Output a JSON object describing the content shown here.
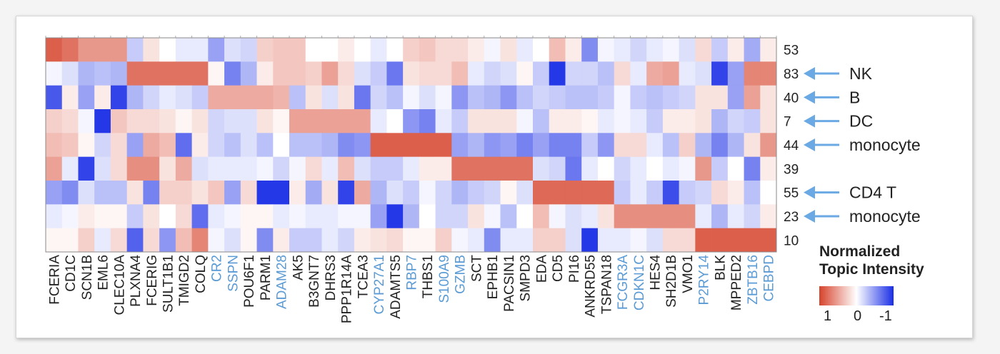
{
  "chart_data": {
    "type": "heatmap",
    "columns": [
      {
        "label": "FCERIA",
        "highlight": false
      },
      {
        "label": "CD1C",
        "highlight": false
      },
      {
        "label": "SCN1B",
        "highlight": false
      },
      {
        "label": "EML6",
        "highlight": false
      },
      {
        "label": "CLEC10A",
        "highlight": false
      },
      {
        "label": "PLXNA4",
        "highlight": false
      },
      {
        "label": "FCERIG",
        "highlight": false
      },
      {
        "label": "SULT1B1",
        "highlight": false
      },
      {
        "label": "TMIGD2",
        "highlight": false
      },
      {
        "label": "COLQ",
        "highlight": false
      },
      {
        "label": "CR2",
        "highlight": true
      },
      {
        "label": "SSPN",
        "highlight": true
      },
      {
        "label": "POU6F1",
        "highlight": false
      },
      {
        "label": "PARM1",
        "highlight": false
      },
      {
        "label": "ADAM28",
        "highlight": true
      },
      {
        "label": "AK5",
        "highlight": false
      },
      {
        "label": "B3GNT7",
        "highlight": false
      },
      {
        "label": "DHRS3",
        "highlight": false
      },
      {
        "label": "PPP1R14A",
        "highlight": false
      },
      {
        "label": "TCEA3",
        "highlight": false
      },
      {
        "label": "CYP27A1",
        "highlight": true
      },
      {
        "label": "ADAMTS5",
        "highlight": false
      },
      {
        "label": "RBP7",
        "highlight": true
      },
      {
        "label": "THBS1",
        "highlight": false
      },
      {
        "label": "S100A9",
        "highlight": true
      },
      {
        "label": "GZMB",
        "highlight": true
      },
      {
        "label": "SCT",
        "highlight": false
      },
      {
        "label": "EPHB1",
        "highlight": false
      },
      {
        "label": "PACSIN1",
        "highlight": false
      },
      {
        "label": "SMPD3",
        "highlight": false
      },
      {
        "label": "EDA",
        "highlight": false
      },
      {
        "label": "CD5",
        "highlight": false
      },
      {
        "label": "PI16",
        "highlight": false
      },
      {
        "label": "ANKRD55",
        "highlight": false
      },
      {
        "label": "TSPAN18",
        "highlight": false
      },
      {
        "label": "FCGR3A",
        "highlight": true
      },
      {
        "label": "CDKN1C",
        "highlight": true
      },
      {
        "label": "HES4",
        "highlight": false
      },
      {
        "label": "SH2D1B",
        "highlight": false
      },
      {
        "label": "VMO1",
        "highlight": false
      },
      {
        "label": "P2RY14",
        "highlight": true
      },
      {
        "label": "BLK",
        "highlight": false
      },
      {
        "label": "MPPED2",
        "highlight": false
      },
      {
        "label": "ZBTB16",
        "highlight": true
      },
      {
        "label": "CEBPD",
        "highlight": true
      }
    ],
    "rows": [
      "53",
      "83",
      "40",
      "7",
      "44",
      "39",
      "55",
      "23",
      "10"
    ],
    "values": [
      [
        0.85,
        0.75,
        0.55,
        0.55,
        0.55,
        -0.25,
        0.15,
        0.0,
        -0.1,
        -0.1,
        -0.45,
        -0.15,
        -0.2,
        0.25,
        0.3,
        0.3,
        0.0,
        0.0,
        0.1,
        0.0,
        -0.1,
        0.0,
        0.25,
        0.3,
        0.2,
        0.2,
        0.1,
        -0.05,
        0.15,
        -0.1,
        0.0,
        0.35,
        0.1,
        -0.55,
        -0.05,
        -0.1,
        -0.2,
        -0.1,
        -0.05,
        -0.15,
        0.2,
        -0.25,
        0.1,
        -0.4,
        0.1
      ],
      [
        -0.05,
        -0.15,
        -0.35,
        -0.3,
        -0.35,
        0.75,
        0.75,
        0.75,
        0.75,
        0.75,
        0.05,
        -0.6,
        -0.35,
        0.1,
        0.3,
        0.3,
        0.25,
        0.5,
        0.2,
        -0.15,
        -0.25,
        -0.65,
        0.15,
        0.2,
        0.2,
        0.35,
        -0.1,
        -0.2,
        -0.15,
        0.05,
        -0.25,
        -0.95,
        -0.2,
        -0.2,
        -0.3,
        0.2,
        -0.1,
        0.45,
        0.5,
        -0.1,
        -0.15,
        -0.9,
        -0.45,
        0.65,
        0.65
      ],
      [
        -0.8,
        0.1,
        -0.45,
        0.1,
        -0.9,
        -0.35,
        -0.2,
        -0.1,
        -0.15,
        -0.25,
        0.45,
        0.45,
        0.45,
        0.45,
        0.4,
        -0.3,
        0.15,
        -0.15,
        0.15,
        -0.65,
        -0.2,
        -0.3,
        -0.05,
        -0.15,
        -0.05,
        -0.5,
        -0.3,
        -0.35,
        -0.5,
        -0.3,
        -0.2,
        -0.25,
        -0.3,
        -0.3,
        -0.25,
        -0.05,
        -0.25,
        -0.3,
        -0.25,
        -0.2,
        0.15,
        0.15,
        -0.45,
        0.5,
        0.15
      ],
      [
        0.25,
        0.2,
        -0.05,
        -0.95,
        0.3,
        0.2,
        0.2,
        0.15,
        0.05,
        0.15,
        -0.2,
        -0.15,
        -0.15,
        0.15,
        0.05,
        0.5,
        0.5,
        0.5,
        0.5,
        0.5,
        -0.1,
        0.0,
        -0.5,
        -0.6,
        -0.1,
        -0.25,
        0.15,
        0.15,
        0.15,
        -0.05,
        -0.3,
        0.1,
        0.1,
        0.05,
        -0.1,
        -0.05,
        -0.1,
        -0.25,
        0.1,
        0.1,
        0.15,
        -0.35,
        -0.2,
        -0.25,
        0.15
      ],
      [
        0.35,
        0.3,
        0.05,
        -0.2,
        0.2,
        -0.45,
        0.45,
        0.35,
        -0.7,
        0.1,
        -0.2,
        -0.3,
        -0.15,
        -0.3,
        0.0,
        -0.3,
        -0.3,
        -0.35,
        -0.55,
        -0.5,
        0.85,
        0.85,
        0.85,
        0.85,
        0.85,
        -0.45,
        -0.35,
        -0.5,
        -0.45,
        -0.6,
        -0.45,
        -0.6,
        -0.6,
        -0.25,
        -0.5,
        0.2,
        0.2,
        -0.1,
        -0.3,
        0.25,
        -0.35,
        -0.6,
        -0.35,
        0.15,
        0.55
      ],
      [
        0.5,
        -0.1,
        -0.9,
        -0.15,
        0.2,
        0.6,
        0.6,
        0.15,
        0.45,
        -0.15,
        -0.1,
        -0.1,
        -0.1,
        -0.05,
        -0.2,
        -0.05,
        0.2,
        -0.1,
        0.35,
        -0.15,
        -0.25,
        -0.25,
        -0.1,
        0.1,
        0.1,
        0.75,
        0.75,
        0.75,
        0.75,
        0.75,
        -0.15,
        -0.2,
        -0.65,
        -0.1,
        0.0,
        -0.2,
        -0.1,
        0.0,
        -0.1,
        -0.05,
        0.55,
        -0.25,
        0.0,
        -0.6,
        0.1
      ],
      [
        -0.45,
        -0.55,
        -0.15,
        -0.3,
        -0.3,
        0.15,
        -0.6,
        0.25,
        0.25,
        0.15,
        0.3,
        -0.45,
        0.2,
        -0.95,
        -0.95,
        0.1,
        -0.4,
        0.15,
        -0.9,
        0.45,
        -0.35,
        -0.15,
        -0.25,
        -0.05,
        -0.2,
        -0.35,
        -0.25,
        -0.2,
        0.05,
        -0.15,
        0.8,
        0.8,
        0.8,
        0.8,
        0.8,
        -0.25,
        -0.1,
        -0.25,
        -0.85,
        -0.25,
        -0.2,
        0.2,
        0.1,
        -0.3,
        0.0
      ],
      [
        -0.1,
        -0.05,
        0.1,
        0.05,
        0.05,
        -0.25,
        0.15,
        0.0,
        0.2,
        -0.7,
        -0.1,
        -0.05,
        0.05,
        0.05,
        -0.1,
        -0.05,
        -0.1,
        -0.1,
        -0.05,
        -0.05,
        -0.45,
        -0.95,
        -0.35,
        0.0,
        -0.2,
        -0.2,
        0.15,
        -0.05,
        -0.3,
        0.0,
        0.35,
        -0.05,
        -0.15,
        -0.1,
        0.15,
        0.6,
        0.6,
        0.6,
        0.6,
        0.6,
        -0.1,
        -0.35,
        -0.1,
        -0.2,
        0.1
      ],
      [
        0.05,
        0.05,
        0.25,
        -0.1,
        0.2,
        -0.75,
        0.2,
        -0.5,
        0.35,
        0.65,
        -0.05,
        -0.15,
        0.05,
        -0.55,
        0.1,
        -0.25,
        -0.25,
        -0.1,
        -0.2,
        0.1,
        0.15,
        0.2,
        0.05,
        0.05,
        0.25,
        -0.05,
        -0.1,
        -0.55,
        -0.1,
        -0.1,
        0.25,
        0.25,
        -0.15,
        -0.95,
        -0.1,
        -0.1,
        -0.05,
        -0.15,
        0.2,
        0.2,
        0.85,
        0.85,
        0.85,
        0.85,
        0.85
      ]
    ],
    "annotations": [
      {
        "row": "83",
        "label": "NK"
      },
      {
        "row": "40",
        "label": "B"
      },
      {
        "row": "7",
        "label": "DC"
      },
      {
        "row": "44",
        "label": "monocyte"
      },
      {
        "row": "55",
        "label": "CD4 T"
      },
      {
        "row": "23",
        "label": "monocyte"
      }
    ],
    "legend": {
      "title_line1": "Normalized",
      "title_line2": "Topic Intensity",
      "ticks": [
        "1",
        "0",
        "-1"
      ],
      "range": [
        1,
        -1
      ]
    },
    "colors": {
      "high": "#d6432c",
      "mid": "#ffffff",
      "low": "#1a2ee6",
      "highlight_label": "#5b9bd5",
      "label": "#222222",
      "arrow": "#6aa9e4"
    },
    "grid": true
  }
}
